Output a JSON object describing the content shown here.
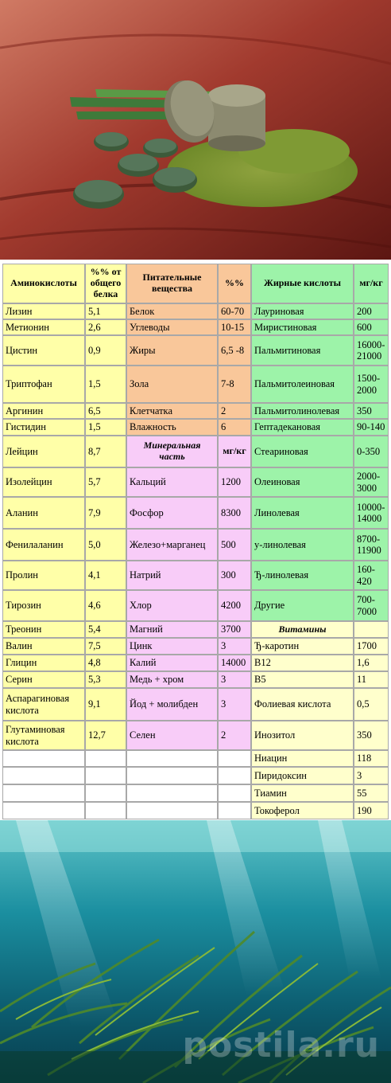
{
  "table": {
    "headers": {
      "amino": "Аминокислоты",
      "amino_pct": "%% от общего белка",
      "nutrients": "Питательные вещества",
      "nutrients_pct": "%%",
      "fatty": "Жирные кислоты",
      "fatty_unit": "мг/кг",
      "minerals": "Минеральная часть",
      "minerals_unit": "мг/кг",
      "vitamins": "Витамины"
    },
    "amino_acids": [
      {
        "name": "Лизин",
        "value": "5,1"
      },
      {
        "name": "Метионин",
        "value": "2,6"
      },
      {
        "name": "Цистин",
        "value": "0,9"
      },
      {
        "name": "Триптофан",
        "value": "1,5"
      },
      {
        "name": "Аргинин",
        "value": "6,5"
      },
      {
        "name": "Гистидин",
        "value": "1,5"
      },
      {
        "name": "Лейцин",
        "value": "8,7"
      },
      {
        "name": "Изолейцин",
        "value": "5,7"
      },
      {
        "name": "Аланин",
        "value": "7,9"
      },
      {
        "name": "Фенилаланин",
        "value": "5,0"
      },
      {
        "name": "Пролин",
        "value": "4,1"
      },
      {
        "name": "Тирозин",
        "value": "4,6"
      },
      {
        "name": "Треонин",
        "value": "5,4"
      },
      {
        "name": "Валин",
        "value": "7,5"
      },
      {
        "name": "Глицин",
        "value": "4,8"
      },
      {
        "name": "Серин",
        "value": "5,3"
      },
      {
        "name": "Аспарагиновая кислота",
        "value": "9,1"
      },
      {
        "name": "Глутаминовая кислота",
        "value": "12,7"
      }
    ],
    "nutrients": [
      {
        "name": "Белок",
        "value": "60-70"
      },
      {
        "name": "Углеводы",
        "value": "10-15"
      },
      {
        "name": "Жиры",
        "value": "6,5 -8"
      },
      {
        "name": "Зола",
        "value": "7-8"
      },
      {
        "name": "Клетчатка",
        "value": "2"
      },
      {
        "name": "Влажность",
        "value": "6"
      }
    ],
    "minerals": [
      {
        "name": "Кальций",
        "value": "1200"
      },
      {
        "name": "Фосфор",
        "value": "8300"
      },
      {
        "name": "Железо+марганец",
        "value": "500"
      },
      {
        "name": "Натрий",
        "value": "300"
      },
      {
        "name": "Хлор",
        "value": "4200"
      },
      {
        "name": "Магний",
        "value": "3700"
      },
      {
        "name": "Цинк",
        "value": "3"
      },
      {
        "name": "Калий",
        "value": "14000"
      },
      {
        "name": "Медь + хром",
        "value": "3"
      },
      {
        "name": "Йод + молибден",
        "value": "3"
      },
      {
        "name": "Селен",
        "value": "2"
      }
    ],
    "fatty_acids": [
      {
        "name": "Лауриновая",
        "value": "200"
      },
      {
        "name": "Миристиновая",
        "value": "600"
      },
      {
        "name": "Пальмитиновая",
        "value": "16000-21000"
      },
      {
        "name": "Пальмитолеиновая",
        "value": "1500-2000"
      },
      {
        "name": "Пальмитолинолевая",
        "value": "350"
      },
      {
        "name": "Гептадекановая",
        "value": "90-140"
      },
      {
        "name": "Стеариновая",
        "value": "0-350"
      },
      {
        "name": "Олеиновая",
        "value": "2000-3000"
      },
      {
        "name": "Линолевая",
        "value": "10000-14000"
      },
      {
        "name": "y-линолевая",
        "value": "8700-11900"
      },
      {
        "name": "Ђ-линолевая",
        "value": "160-420"
      },
      {
        "name": "Другие",
        "value": "700-7000"
      }
    ],
    "vitamins": [
      {
        "name": "Ђ-каротин",
        "value": "1700"
      },
      {
        "name": "B12",
        "value": "1,6"
      },
      {
        "name": "B5",
        "value": "11"
      },
      {
        "name": "Фолиевая кислота",
        "value": "0,5"
      },
      {
        "name": "Инозитол",
        "value": "350"
      },
      {
        "name": "Ниацин",
        "value": "118"
      },
      {
        "name": "Пиридоксин",
        "value": "3"
      },
      {
        "name": "Тиамин",
        "value": "55"
      },
      {
        "name": "Токоферол",
        "value": "190"
      }
    ]
  },
  "watermark": "postila.ru"
}
